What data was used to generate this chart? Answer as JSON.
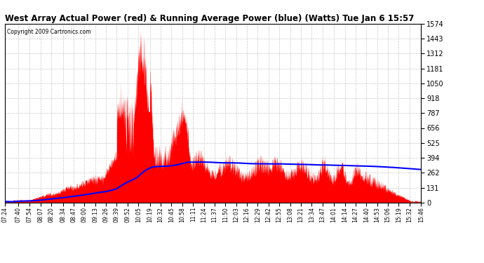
{
  "title": "West Array Actual Power (red) & Running Average Power (blue) (Watts) Tue Jan 6 15:57",
  "copyright": "Copyright 2009 Cartronics.com",
  "ymin": 0.0,
  "ymax": 1574.4,
  "ytick_interval": 131.2,
  "background_color": "#ffffff",
  "actual_color": "#ff0000",
  "avg_color": "#0000ff",
  "grid_color": "#c8c8c8",
  "x_labels": [
    "07:24",
    "07:40",
    "07:54",
    "08:07",
    "08:20",
    "08:34",
    "08:47",
    "09:00",
    "09:13",
    "09:26",
    "09:39",
    "09:52",
    "10:05",
    "10:19",
    "10:32",
    "10:45",
    "10:58",
    "11:11",
    "11:24",
    "11:37",
    "11:50",
    "12:03",
    "12:16",
    "12:29",
    "12:42",
    "12:55",
    "13:08",
    "13:21",
    "13:34",
    "13:47",
    "14:01",
    "14:14",
    "14:27",
    "14:40",
    "14:53",
    "15:06",
    "15:19",
    "15:32",
    "15:46"
  ]
}
